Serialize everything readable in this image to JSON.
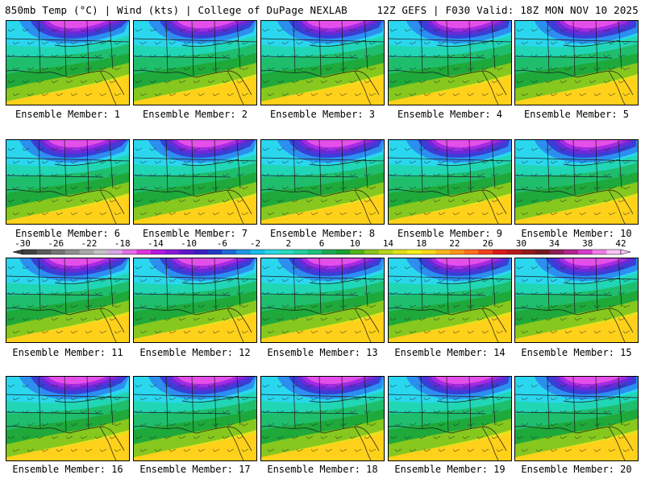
{
  "header": {
    "title_left": "850mb Temp (°C) | Wind (kts) | College of DuPage NEXLAB",
    "title_right": "12Z GEFS | F030 Valid: 18Z MON NOV 10 2025"
  },
  "members": [
    {
      "label": "Ensemble Member: 1"
    },
    {
      "label": "Ensemble Member: 2"
    },
    {
      "label": "Ensemble Member: 3"
    },
    {
      "label": "Ensemble Member: 4"
    },
    {
      "label": "Ensemble Member: 5"
    },
    {
      "label": "Ensemble Member: 6"
    },
    {
      "label": "Ensemble Member: 7"
    },
    {
      "label": "Ensemble Member: 8"
    },
    {
      "label": "Ensemble Member: 9"
    },
    {
      "label": "Ensemble Member: 10"
    },
    {
      "label": "Ensemble Member: 11"
    },
    {
      "label": "Ensemble Member: 12"
    },
    {
      "label": "Ensemble Member: 13"
    },
    {
      "label": "Ensemble Member: 14"
    },
    {
      "label": "Ensemble Member: 15"
    },
    {
      "label": "Ensemble Member: 16"
    },
    {
      "label": "Ensemble Member: 17"
    },
    {
      "label": "Ensemble Member: 18"
    },
    {
      "label": "Ensemble Member: 19"
    },
    {
      "label": "Ensemble Member: 20"
    }
  ],
  "colorbar": {
    "labels": [
      "-30",
      "-26",
      "-22",
      "-18",
      "-14",
      "-10",
      "-6",
      "-2",
      "2",
      "6",
      "10",
      "14",
      "18",
      "22",
      "26",
      "30",
      "34",
      "38",
      "42"
    ],
    "colors": [
      "#404040",
      "#5a5a5a",
      "#757575",
      "#8f8f8f",
      "#aaaaaa",
      "#c4c4c4",
      "#d7a6e6",
      "#e36ee6",
      "#dd33dd",
      "#b517e0",
      "#8a17d8",
      "#5f18cc",
      "#3b1fc1",
      "#1f3cc8",
      "#1f6ad8",
      "#1f96e3",
      "#19bdea",
      "#2bd6e3",
      "#28dcc0",
      "#22d1a1",
      "#1dc27c",
      "#1daa55",
      "#19a12e",
      "#52b21c",
      "#87c51a",
      "#b7d61a",
      "#e1e01a",
      "#f3f01a",
      "#ffd81a",
      "#ffb71a",
      "#ff951a",
      "#ff711a",
      "#f1421a",
      "#db1a1a",
      "#b81a1a",
      "#951a1a",
      "#741a20",
      "#8e1f54",
      "#b0258e",
      "#d63acb",
      "#f07de8",
      "#fbc1f6"
    ],
    "region_colors": {
      "magenta": "#e44fe9",
      "violet": "#a52be2",
      "indigo": "#6a2ad8",
      "blue": "#3a3ed6",
      "azure": "#2c8ff0",
      "cyan": "#2ad7ef",
      "teal": "#21d6b5",
      "green": "#1fbe6c",
      "darkgreen": "#1ea93a",
      "lime": "#86c81e",
      "yellow": "#e6e11d",
      "gold": "#ffd11a"
    }
  }
}
